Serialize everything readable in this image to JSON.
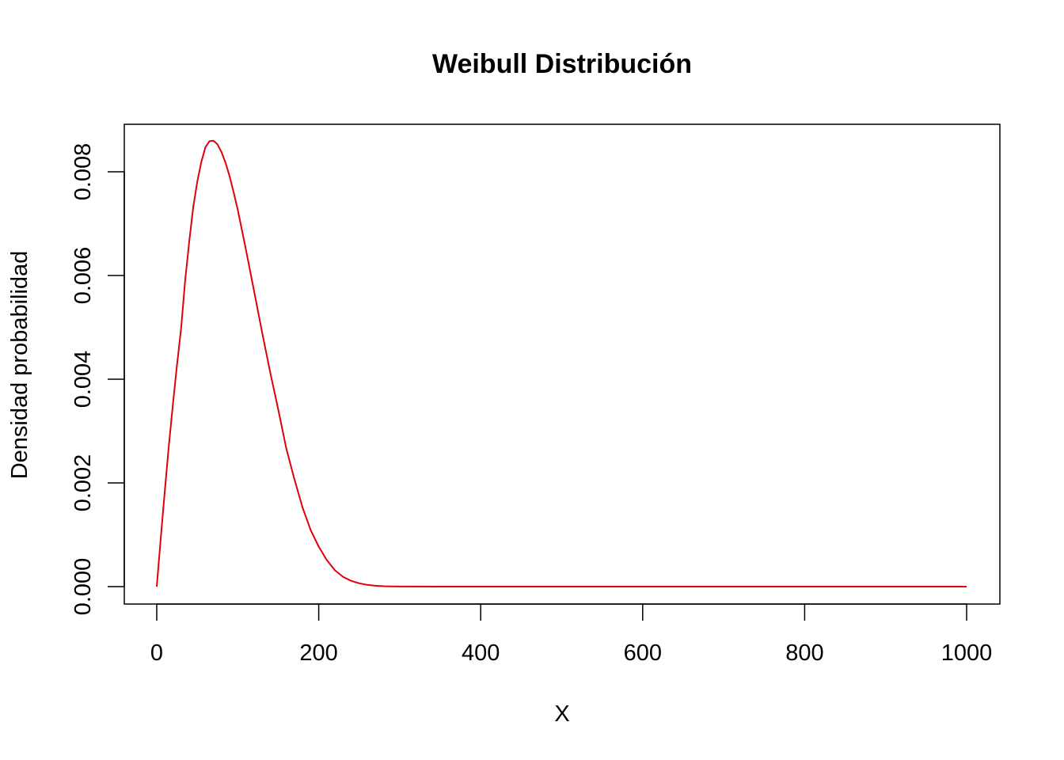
{
  "chart_data": {
    "type": "line",
    "title": "Weibull Distribución",
    "xlabel": "X",
    "ylabel": "Densidad probabilidad",
    "xlim": [
      0,
      1000
    ],
    "ylim": [
      0,
      0.0086
    ],
    "x_ticks": [
      0,
      200,
      400,
      600,
      800,
      1000
    ],
    "x_tick_labels": [
      "0",
      "200",
      "400",
      "600",
      "800",
      "1000"
    ],
    "y_ticks": [
      0,
      0.002,
      0.004,
      0.006,
      0.008
    ],
    "y_tick_labels": [
      "0.000",
      "0.002",
      "0.004",
      "0.006",
      "0.008"
    ],
    "grid": false,
    "legend": "none",
    "series": [
      {
        "color": "#e0000b",
        "x": [
          0,
          5,
          10,
          15,
          20,
          25,
          30,
          35,
          40,
          45,
          50,
          55,
          60,
          65,
          70,
          75,
          80,
          85,
          90,
          95,
          100,
          110,
          120,
          130,
          140,
          150,
          160,
          170,
          180,
          190,
          200,
          210,
          220,
          230,
          240,
          250,
          260,
          270,
          280,
          290,
          300,
          350,
          400,
          450,
          500,
          600,
          700,
          800,
          900,
          1000
        ],
        "y": [
          0,
          0.00094,
          0.00185,
          0.00272,
          0.00353,
          0.00428,
          0.00497,
          0.00589,
          0.00664,
          0.00731,
          0.00781,
          0.00819,
          0.00847,
          0.00859,
          0.0086,
          0.00853,
          0.00838,
          0.00817,
          0.00791,
          0.0076,
          0.00727,
          0.00651,
          0.00571,
          0.00491,
          0.00414,
          0.00342,
          0.00266,
          0.00207,
          0.00153,
          0.00109,
          0.000771,
          0.000511,
          0.000315,
          0.000189,
          0.000112,
          6.4e-05,
          3.4e-05,
          1.7e-05,
          8e-06,
          3.5e-06,
          1.5e-06,
          0,
          0,
          0,
          0,
          0,
          0,
          0,
          0,
          0
        ]
      }
    ]
  }
}
